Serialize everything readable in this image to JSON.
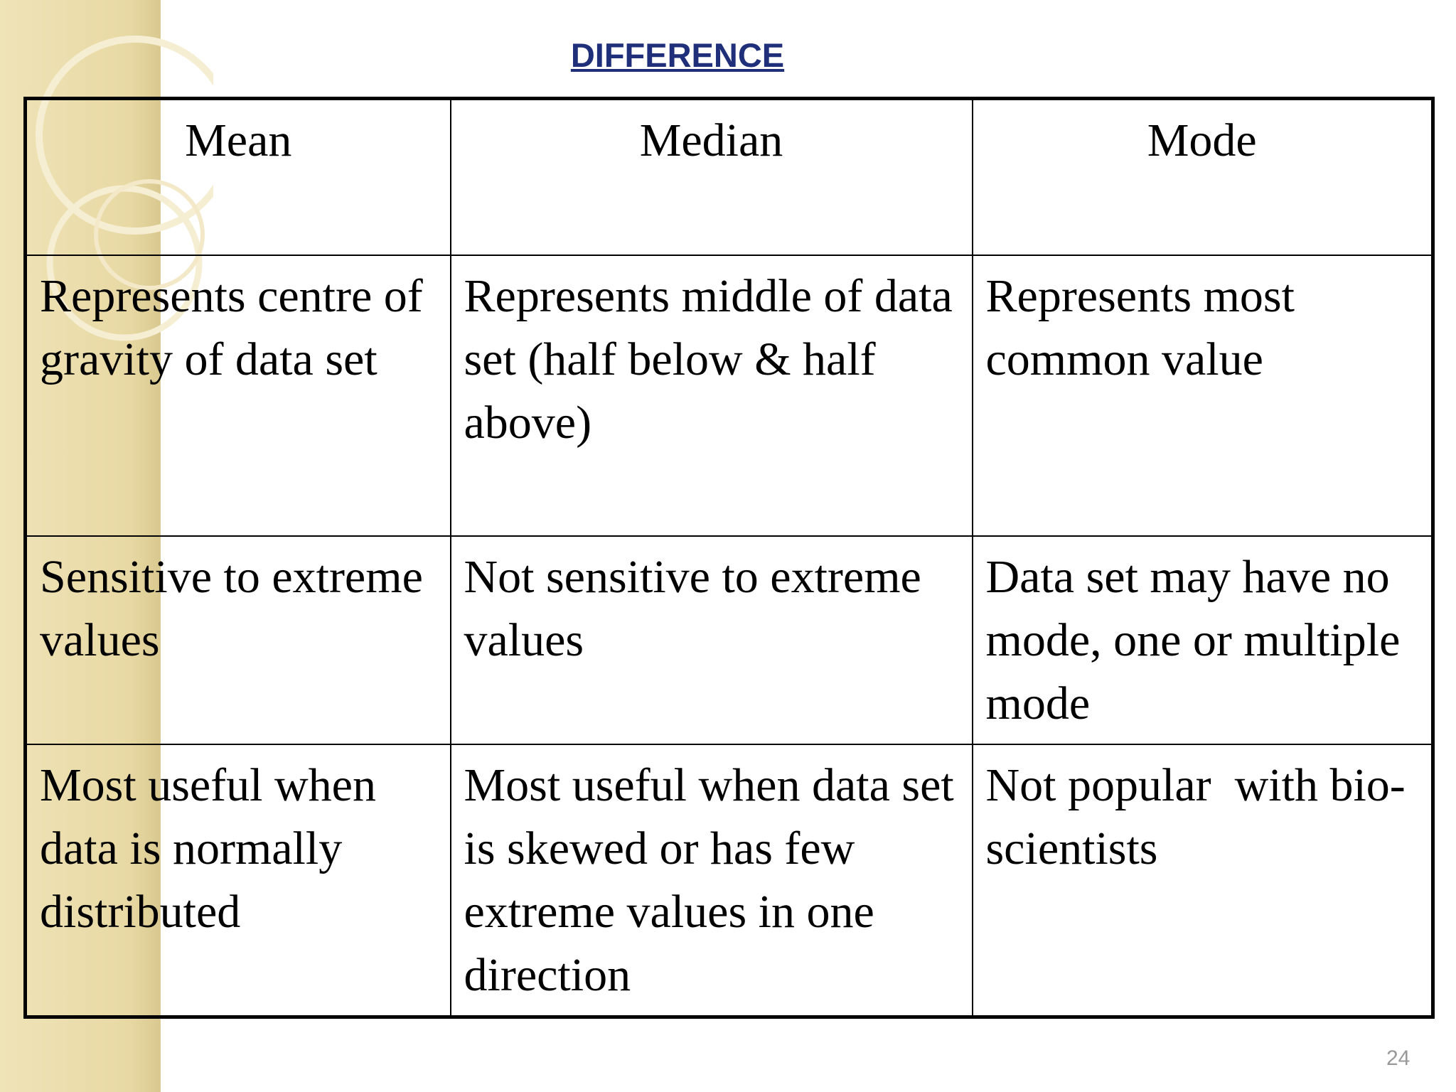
{
  "title": "DIFFERENCE",
  "table": {
    "header": [
      "Mean",
      "Median",
      "Mode"
    ],
    "rows": [
      [
        "Represents centre of gravity of data set",
        "Represents middle of data set (half below & half above)",
        "Represents most common value"
      ],
      [
        "Sensitive to extreme values",
        "Not sensitive to extreme values",
        "Data set may have no mode, one or multiple mode"
      ],
      [
        "Most useful when data is normally distributed",
        "Most useful when data set is skewed or has few extreme values in one direction",
        "Not popular  with bio-scientists"
      ]
    ]
  },
  "page_number": "24"
}
